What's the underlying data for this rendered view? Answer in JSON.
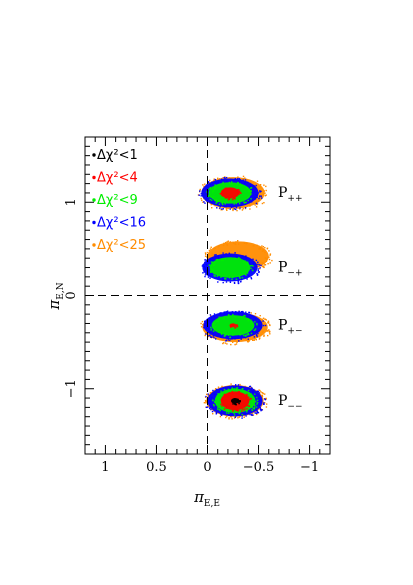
{
  "chart_data": {
    "type": "scatter",
    "title": "",
    "xlabel": {
      "symbol": "π",
      "subscript": "E,E"
    },
    "ylabel": {
      "symbol": "π",
      "subscript": "E,N"
    },
    "xlim": [
      1.2,
      -1.2
    ],
    "ylim": [
      -1.7,
      1.7
    ],
    "x_ticks": [
      1,
      0.5,
      0,
      -0.5,
      -1
    ],
    "x_tick_labels": [
      "1",
      "0.5",
      "0",
      "−0.5",
      "−1"
    ],
    "y_ticks": [
      1,
      0,
      -1
    ],
    "y_tick_labels": [
      "1",
      "0",
      "−1"
    ],
    "reference_lines": {
      "x": 0,
      "y": 0,
      "style": "dashed"
    },
    "legend": {
      "placement": "top-left",
      "entries": [
        {
          "text": "Δχ²<1",
          "color": "#000000"
        },
        {
          "text": "Δχ²<4",
          "color": "#ff0000"
        },
        {
          "text": "Δχ²<9",
          "color": "#00ee00"
        },
        {
          "text": "Δχ²<16",
          "color": "#0000ff"
        },
        {
          "text": "Δχ²<25",
          "color": "#ff8c00"
        }
      ]
    },
    "solutions": [
      {
        "label": "P",
        "sub": "++",
        "x": -0.22,
        "y": 1.1,
        "radii": {
          "orange": [
            0.31,
            0.17
          ],
          "blue": [
            0.28,
            0.155
          ],
          "green": [
            0.21,
            0.115
          ],
          "red": [
            0.09,
            0.06
          ],
          "black": [
            0,
            0
          ]
        },
        "orange_offset": [
          -0.03,
          0.0
        ]
      },
      {
        "label": "P",
        "sub": "−+",
        "x": -0.22,
        "y": 0.3,
        "radii": {
          "orange": [
            0.3,
            0.16
          ],
          "blue": [
            0.27,
            0.15
          ],
          "green": [
            0.2,
            0.11
          ],
          "red": [
            0,
            0
          ],
          "black": [
            0,
            0
          ]
        },
        "orange_offset": [
          -0.08,
          0.12
        ]
      },
      {
        "label": "P",
        "sub": "+−",
        "x": -0.25,
        "y": -0.32,
        "radii": {
          "orange": [
            0.32,
            0.16
          ],
          "blue": [
            0.29,
            0.15
          ],
          "green": [
            0.21,
            0.11
          ],
          "red": [
            0.035,
            0.02
          ],
          "black": [
            0,
            0
          ]
        },
        "orange_offset": [
          -0.02,
          -0.02
        ]
      },
      {
        "label": "P",
        "sub": "−−",
        "x": -0.27,
        "y": -1.13,
        "radii": {
          "orange": [
            0.28,
            0.17
          ],
          "blue": [
            0.27,
            0.165
          ],
          "green": [
            0.2,
            0.13
          ],
          "red": [
            0.14,
            0.1
          ],
          "black": [
            0.04,
            0.03
          ]
        },
        "orange_offset": [
          0.0,
          0.0
        ]
      }
    ]
  }
}
